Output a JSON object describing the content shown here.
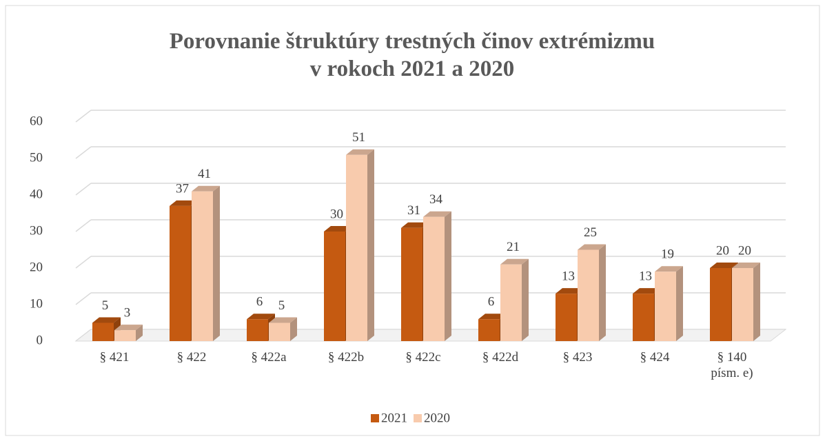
{
  "chart_data": {
    "type": "bar3d",
    "title": "Porovnanie štruktúry trestných činov extrémizmu v rokoch 2021 a 2020",
    "categories": [
      "§ 421",
      "§ 422",
      "§ 422a",
      "§ 422b",
      "§ 422c",
      "§ 422d",
      "§ 423",
      "§ 424",
      "§ 140 písm. e)"
    ],
    "series": [
      {
        "name": "2021",
        "color": "#c55a11",
        "values": [
          5,
          37,
          6,
          30,
          31,
          6,
          13,
          13,
          20
        ]
      },
      {
        "name": "2020",
        "color": "#f8cbad",
        "values": [
          3,
          41,
          5,
          51,
          34,
          21,
          25,
          19,
          20
        ]
      }
    ],
    "ylim": [
      0,
      60
    ],
    "yticks": [
      0,
      10,
      20,
      30,
      40,
      50,
      60
    ],
    "grid": true,
    "legend": "bottom"
  }
}
